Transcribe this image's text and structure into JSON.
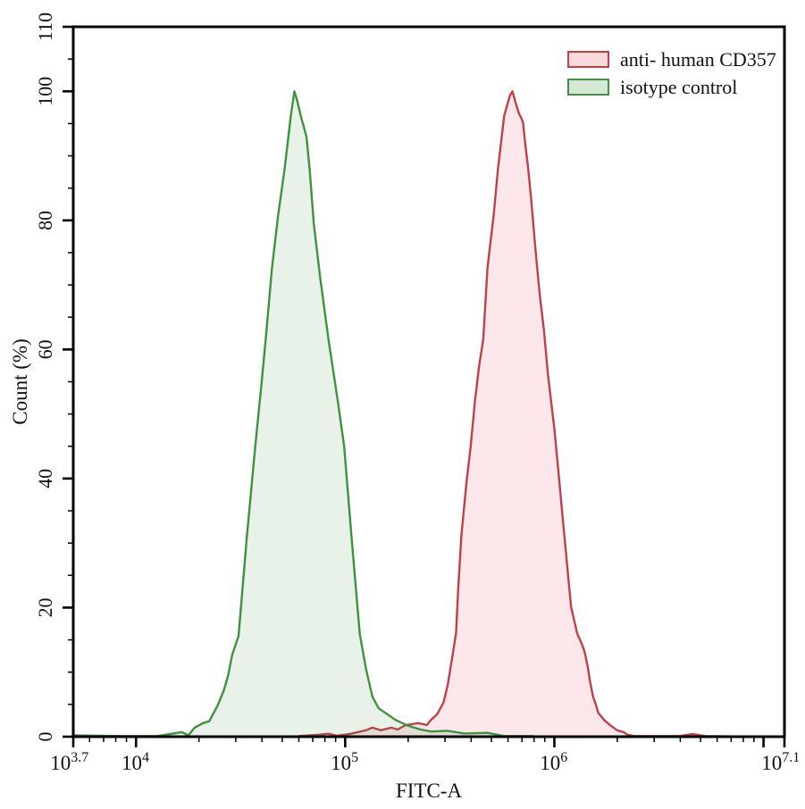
{
  "page": {
    "background": "#ffffff"
  },
  "chart_data": {
    "type": "area",
    "subtype": "flow-cytometry-overlay-histogram",
    "title": "",
    "xlabel": "FITC-A",
    "ylabel": "Count (%)",
    "x_scale": "log10",
    "x_range_log": [
      3.7,
      7.1
    ],
    "y_range": [
      0,
      110
    ],
    "grid": false,
    "frame": true,
    "legend_position": "top-right",
    "axis_color": "#000000",
    "text_color": "#111111",
    "x_tick_base": "10",
    "x_major_ticks": [
      {
        "log": 3.7,
        "exp_label": "3.7"
      },
      {
        "log": 4.0,
        "exp_label": "4"
      },
      {
        "log": 5.0,
        "exp_label": "5"
      },
      {
        "log": 6.0,
        "exp_label": "6"
      },
      {
        "log": 7.0,
        "exp_label": ""
      },
      {
        "log": 7.1,
        "exp_label": "7.1"
      }
    ],
    "x_minor_decades": [
      3,
      4,
      5,
      6
    ],
    "y_major_ticks": [
      0,
      20,
      40,
      60,
      80,
      100,
      110
    ],
    "y_minor_step": 5,
    "legend": [
      {
        "label": "anti- human CD357",
        "series": 0
      },
      {
        "label": "isotype control",
        "series": 1
      }
    ],
    "series": [
      {
        "name": "anti- human CD357",
        "stroke": "#bf4148",
        "fill": "#e6505f",
        "fill_opacity": 0.13,
        "peak_log10_x": 5.8,
        "peak_percent": 100,
        "points": [
          [
            4.78,
            0.1
          ],
          [
            4.875,
            0.3
          ],
          [
            4.92,
            0.45
          ],
          [
            4.96,
            0.15
          ],
          [
            5.02,
            0.4
          ],
          [
            5.06,
            0.7
          ],
          [
            5.1,
            1.0
          ],
          [
            5.13,
            1.4
          ],
          [
            5.17,
            1.0
          ],
          [
            5.22,
            1.4
          ],
          [
            5.25,
            1.1
          ],
          [
            5.29,
            1.8
          ],
          [
            5.35,
            2.1
          ],
          [
            5.39,
            1.8
          ],
          [
            5.41,
            2.6
          ],
          [
            5.44,
            3.5
          ],
          [
            5.47,
            5.3
          ],
          [
            5.49,
            8.0
          ],
          [
            5.51,
            12.0
          ],
          [
            5.53,
            16.0
          ],
          [
            5.54,
            22.8
          ],
          [
            5.555,
            31.0
          ],
          [
            5.58,
            39.4
          ],
          [
            5.6,
            45.0
          ],
          [
            5.62,
            51.9
          ],
          [
            5.64,
            57.4
          ],
          [
            5.66,
            61.6
          ],
          [
            5.68,
            72.6
          ],
          [
            5.71,
            80.9
          ],
          [
            5.73,
            87.9
          ],
          [
            5.76,
            96.2
          ],
          [
            5.787,
            99.3
          ],
          [
            5.8,
            100.0
          ],
          [
            5.815,
            98.2
          ],
          [
            5.83,
            96.6
          ],
          [
            5.84,
            96.0
          ],
          [
            5.85,
            95.2
          ],
          [
            5.862,
            91.5
          ],
          [
            5.875,
            88.0
          ],
          [
            5.89,
            83.0
          ],
          [
            5.91,
            75.4
          ],
          [
            5.93,
            68.5
          ],
          [
            5.95,
            63.0
          ],
          [
            5.97,
            56.0
          ],
          [
            6.0,
            47.7
          ],
          [
            6.02,
            40.8
          ],
          [
            6.04,
            33.9
          ],
          [
            6.06,
            27.0
          ],
          [
            6.08,
            20.1
          ],
          [
            6.11,
            15.9
          ],
          [
            6.13,
            14.5
          ],
          [
            6.145,
            13.1
          ],
          [
            6.16,
            10.8
          ],
          [
            6.17,
            8.6
          ],
          [
            6.185,
            6.2
          ],
          [
            6.2,
            4.8
          ],
          [
            6.21,
            3.7
          ],
          [
            6.24,
            2.5
          ],
          [
            6.27,
            1.7
          ],
          [
            6.3,
            1.0
          ],
          [
            6.33,
            0.7
          ],
          [
            6.35,
            0.3
          ],
          [
            6.38,
            0.1
          ],
          [
            6.6,
            0.1
          ],
          [
            6.66,
            0.4
          ],
          [
            6.72,
            0.1
          ],
          [
            6.95,
            0.0
          ]
        ]
      },
      {
        "name": "isotype control",
        "stroke": "#3f923f",
        "fill": "#3f923f",
        "fill_opacity": 0.12,
        "peak_log10_x": 4.76,
        "peak_percent": 100,
        "points": [
          [
            3.7,
            0.2
          ],
          [
            3.95,
            0.1
          ],
          [
            4.1,
            0.1
          ],
          [
            4.18,
            0.5
          ],
          [
            4.22,
            0.7
          ],
          [
            4.25,
            0.2
          ],
          [
            4.28,
            1.4
          ],
          [
            4.32,
            2.1
          ],
          [
            4.35,
            2.4
          ],
          [
            4.39,
            4.8
          ],
          [
            4.42,
            7.2
          ],
          [
            4.44,
            9.4
          ],
          [
            4.46,
            12.7
          ],
          [
            4.49,
            15.6
          ],
          [
            4.53,
            31.0
          ],
          [
            4.57,
            45.0
          ],
          [
            4.6,
            54.7
          ],
          [
            4.62,
            61.6
          ],
          [
            4.65,
            72.6
          ],
          [
            4.68,
            80.9
          ],
          [
            4.71,
            87.9
          ],
          [
            4.74,
            96.2
          ],
          [
            4.757,
            100.0
          ],
          [
            4.77,
            98.6
          ],
          [
            4.79,
            95.9
          ],
          [
            4.815,
            93.0
          ],
          [
            4.83,
            87.9
          ],
          [
            4.85,
            79.5
          ],
          [
            4.88,
            71.2
          ],
          [
            4.92,
            61.6
          ],
          [
            4.965,
            51.9
          ],
          [
            4.995,
            45.0
          ],
          [
            5.03,
            31.0
          ],
          [
            5.07,
            15.9
          ],
          [
            5.1,
            10.4
          ],
          [
            5.13,
            6.2
          ],
          [
            5.16,
            4.4
          ],
          [
            5.2,
            3.5
          ],
          [
            5.24,
            2.6
          ],
          [
            5.3,
            1.7
          ],
          [
            5.36,
            1.1
          ],
          [
            5.41,
            0.8
          ],
          [
            5.49,
            0.9
          ],
          [
            5.57,
            0.5
          ],
          [
            5.68,
            0.6
          ],
          [
            5.76,
            0.1
          ],
          [
            5.9,
            0.1
          ]
        ]
      }
    ]
  }
}
